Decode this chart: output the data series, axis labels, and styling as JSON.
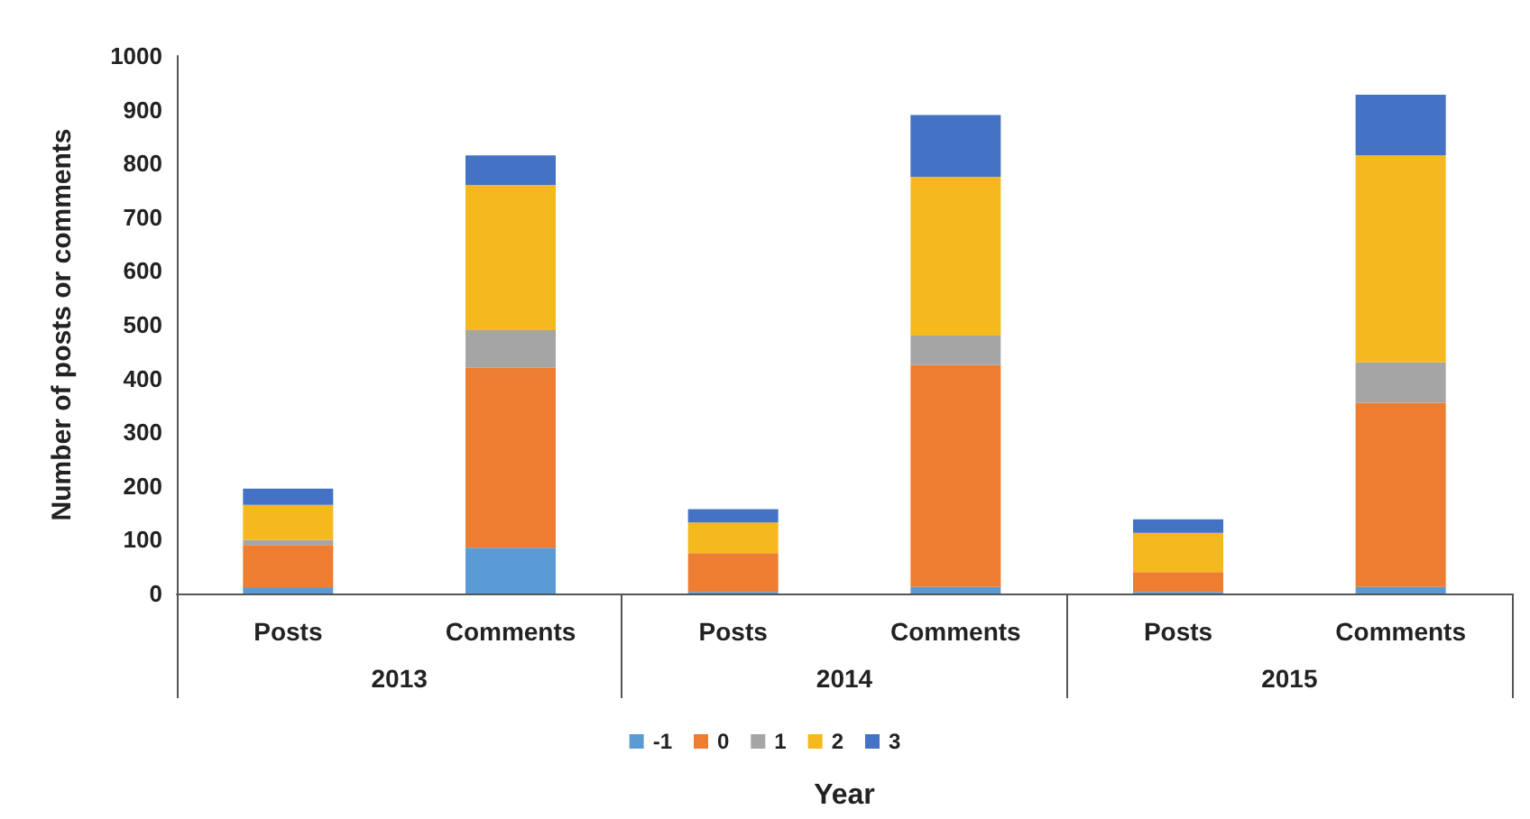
{
  "chart_data": {
    "type": "bar",
    "stacked": true,
    "xlabel": "Year",
    "ylabel": "Number of posts or comments",
    "categories": [
      "Posts",
      "Comments",
      "Posts",
      "Comments",
      "Posts",
      "Comments"
    ],
    "annotations": [
      "2013",
      "2014",
      "2015"
    ],
    "series": [
      {
        "name": "-1",
        "color": "#5b9bd5",
        "values": [
          10,
          85,
          3,
          12,
          3,
          12
        ]
      },
      {
        "name": "0",
        "color": "#ed7d31",
        "values": [
          80,
          335,
          72,
          413,
          37,
          343
        ]
      },
      {
        "name": "1",
        "color": "#a5a5a5",
        "values": [
          10,
          70,
          null,
          55,
          null,
          75
        ]
      },
      {
        "name": "2",
        "color": "#f5b91d",
        "values": [
          65,
          270,
          57,
          295,
          73,
          385
        ]
      },
      {
        "name": "3",
        "color": "#4472c4",
        "values": [
          30,
          55,
          25,
          115,
          25,
          113
        ]
      }
    ],
    "ylim": [
      0,
      1000
    ],
    "yticks": [
      0,
      100,
      200,
      300,
      400,
      500,
      600,
      700,
      800,
      900,
      1000
    ],
    "grid": false,
    "legend": "bottom"
  }
}
